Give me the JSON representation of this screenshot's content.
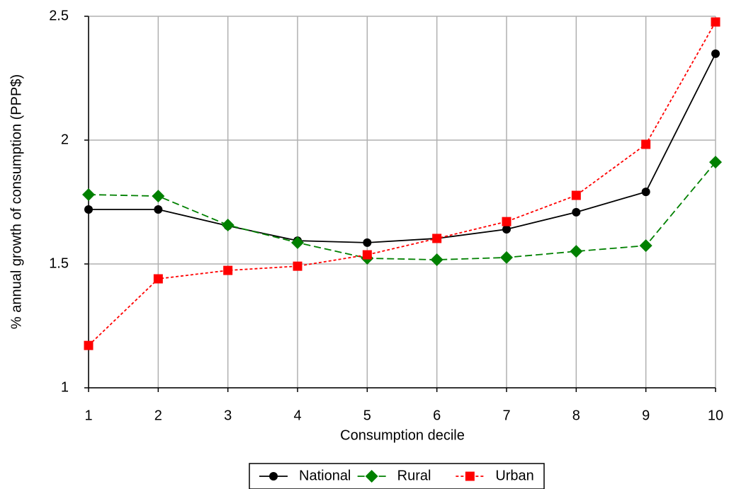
{
  "chart_data": {
    "type": "line",
    "x_label": "Consumption decile",
    "y_label": "% annual growth of consumption (PPP$)",
    "x": [
      1,
      2,
      3,
      4,
      5,
      6,
      7,
      8,
      9,
      10
    ],
    "series": [
      {
        "name": "National",
        "color": "#000000",
        "dash": "solid",
        "marker": "circle",
        "values": [
          1.72,
          1.72,
          1.654,
          1.594,
          1.586,
          1.603,
          1.64,
          1.709,
          1.791,
          2.349
        ]
      },
      {
        "name": "Rural",
        "color": "#008000",
        "dash": "dashed",
        "marker": "diamond",
        "values": [
          1.78,
          1.774,
          1.657,
          1.586,
          1.523,
          1.517,
          1.526,
          1.551,
          1.574,
          1.911
        ]
      },
      {
        "name": "Urban",
        "color": "#ff0000",
        "dash": "dotted",
        "marker": "square",
        "values": [
          1.171,
          1.44,
          1.474,
          1.491,
          1.537,
          1.603,
          1.671,
          1.777,
          1.983,
          2.477
        ]
      }
    ],
    "xlim": [
      1,
      10
    ],
    "xticks": [
      1,
      2,
      3,
      4,
      5,
      6,
      7,
      8,
      9,
      10
    ],
    "ylim": [
      1,
      2.5
    ],
    "yticks": [
      1,
      1.5,
      2,
      2.5
    ],
    "grid": true,
    "legend": "bottom"
  }
}
